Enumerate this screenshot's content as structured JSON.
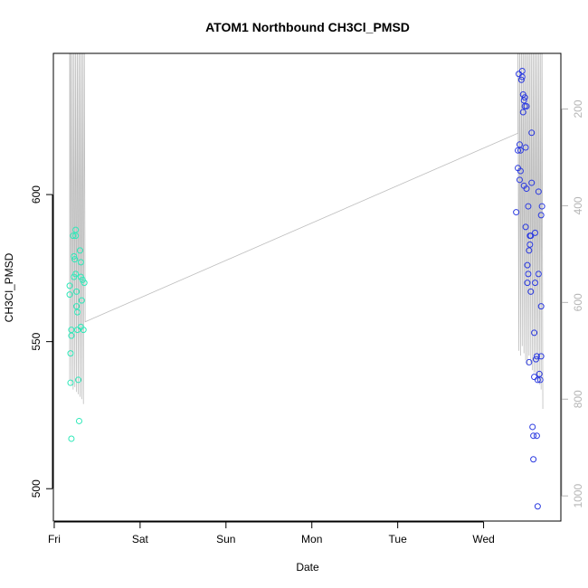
{
  "chart_data": {
    "type": "scatter",
    "title": "ATOM1 Northbound CH3Cl_PMSD",
    "xlabel": "Date",
    "ylabel": "CH3Cl_PMSD",
    "x_ticks": [
      "Fri",
      "Sat",
      "Sun",
      "Mon",
      "Tue",
      "Wed"
    ],
    "xlim_days": [
      -0.01,
      5.9
    ],
    "ylim": [
      489,
      648
    ],
    "y_ticks": [
      500,
      550,
      600
    ],
    "secondary_axis": {
      "color": "#b5b5b5",
      "reversed": true,
      "ylim": [
        1052,
        85
      ],
      "ticks": [
        200,
        400,
        600,
        800,
        1000
      ]
    },
    "grid": false,
    "legend": "none",
    "colors": {
      "group1": "#2de8b8",
      "group2": "#2b3ae0",
      "trace": "#bdbdbd"
    },
    "series": [
      {
        "points": [
          [
            0.18,
            569
          ],
          [
            0.18,
            566
          ],
          [
            0.19,
            536
          ],
          [
            0.19,
            546
          ],
          [
            0.2,
            554
          ],
          [
            0.2,
            552
          ],
          [
            0.2,
            517
          ],
          [
            0.22,
            586
          ],
          [
            0.23,
            579
          ],
          [
            0.23,
            572
          ],
          [
            0.24,
            578
          ],
          [
            0.25,
            586
          ],
          [
            0.25,
            588
          ],
          [
            0.25,
            573
          ],
          [
            0.26,
            562
          ],
          [
            0.26,
            567
          ],
          [
            0.27,
            560
          ],
          [
            0.27,
            554
          ],
          [
            0.28,
            537
          ],
          [
            0.29,
            523
          ],
          [
            0.3,
            581
          ],
          [
            0.31,
            577
          ],
          [
            0.31,
            572
          ],
          [
            0.31,
            555
          ],
          [
            0.32,
            564
          ],
          [
            0.33,
            571
          ],
          [
            0.34,
            554
          ],
          [
            0.35,
            570
          ]
        ]
      },
      {
        "points": [
          [
            5.38,
            594
          ],
          [
            5.4,
            609
          ],
          [
            5.4,
            615
          ],
          [
            5.41,
            641
          ],
          [
            5.42,
            605
          ],
          [
            5.42,
            617
          ],
          [
            5.43,
            608
          ],
          [
            5.43,
            615
          ],
          [
            5.44,
            639
          ],
          [
            5.45,
            640
          ],
          [
            5.45,
            642
          ],
          [
            5.46,
            634
          ],
          [
            5.46,
            628
          ],
          [
            5.47,
            632
          ],
          [
            5.47,
            603
          ],
          [
            5.48,
            633
          ],
          [
            5.48,
            630
          ],
          [
            5.49,
            616
          ],
          [
            5.49,
            589
          ],
          [
            5.5,
            630
          ],
          [
            5.5,
            602
          ],
          [
            5.51,
            570
          ],
          [
            5.51,
            576
          ],
          [
            5.52,
            596
          ],
          [
            5.52,
            573
          ],
          [
            5.53,
            543
          ],
          [
            5.53,
            581
          ],
          [
            5.54,
            583
          ],
          [
            5.54,
            586
          ],
          [
            5.55,
            567
          ],
          [
            5.55,
            586
          ],
          [
            5.56,
            604
          ],
          [
            5.56,
            621
          ],
          [
            5.57,
            521
          ],
          [
            5.58,
            518
          ],
          [
            5.58,
            510
          ],
          [
            5.59,
            538
          ],
          [
            5.59,
            553
          ],
          [
            5.6,
            570
          ],
          [
            5.6,
            587
          ],
          [
            5.61,
            544
          ],
          [
            5.62,
            518
          ],
          [
            5.62,
            545
          ],
          [
            5.63,
            537
          ],
          [
            5.63,
            494
          ],
          [
            5.64,
            573
          ],
          [
            5.64,
            601
          ],
          [
            5.65,
            539
          ],
          [
            5.66,
            537
          ],
          [
            5.67,
            593
          ],
          [
            5.67,
            562
          ],
          [
            5.68,
            596
          ],
          [
            5.67,
            545
          ]
        ]
      }
    ],
    "trace_secondary": [
      [
        0.18,
        30
      ],
      [
        0.18,
        760
      ],
      [
        0.19,
        30
      ],
      [
        0.2,
        770
      ],
      [
        0.21,
        30
      ],
      [
        0.22,
        780
      ],
      [
        0.23,
        30
      ],
      [
        0.24,
        775
      ],
      [
        0.25,
        30
      ],
      [
        0.26,
        785
      ],
      [
        0.27,
        30
      ],
      [
        0.28,
        790
      ],
      [
        0.29,
        30
      ],
      [
        0.3,
        795
      ],
      [
        0.31,
        30
      ],
      [
        0.32,
        800
      ],
      [
        0.33,
        30
      ],
      [
        0.34,
        810
      ],
      [
        0.35,
        30
      ],
      [
        0.36,
        640
      ],
      [
        5.4,
        250
      ],
      [
        5.4,
        30
      ],
      [
        5.41,
        700
      ],
      [
        5.42,
        30
      ],
      [
        5.43,
        710
      ],
      [
        5.44,
        30
      ],
      [
        5.45,
        690
      ],
      [
        5.46,
        30
      ],
      [
        5.47,
        705
      ],
      [
        5.48,
        30
      ],
      [
        5.49,
        720
      ],
      [
        5.5,
        30
      ],
      [
        5.51,
        730
      ],
      [
        5.52,
        30
      ],
      [
        5.53,
        710
      ],
      [
        5.54,
        30
      ],
      [
        5.55,
        725
      ],
      [
        5.56,
        30
      ],
      [
        5.57,
        740
      ],
      [
        5.58,
        30
      ],
      [
        5.59,
        745
      ],
      [
        5.6,
        30
      ],
      [
        5.61,
        750
      ],
      [
        5.62,
        30
      ],
      [
        5.63,
        760
      ],
      [
        5.64,
        30
      ],
      [
        5.65,
        770
      ],
      [
        5.66,
        30
      ],
      [
        5.67,
        780
      ],
      [
        5.68,
        30
      ],
      [
        5.69,
        820
      ]
    ]
  }
}
